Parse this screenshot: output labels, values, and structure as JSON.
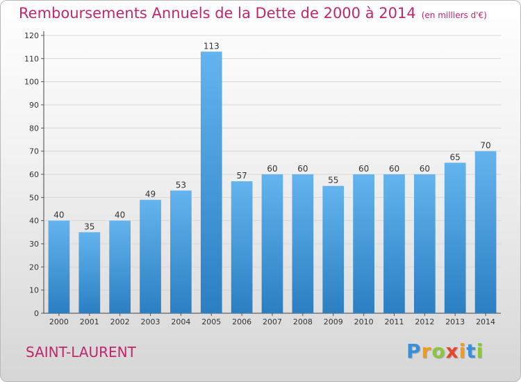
{
  "header": {
    "title": "Remboursements Annuels de la Dette de 2000 à 2014",
    "unit": "(en milliers d'€)"
  },
  "commune": "SAINT-LAURENT",
  "logo": {
    "text": "Proxiti",
    "letters": [
      {
        "ch": "P",
        "color": "#3b8fd9"
      },
      {
        "ch": "r",
        "color": "#f39c12"
      },
      {
        "ch": "o",
        "color": "#8cc63f"
      },
      {
        "ch": "x",
        "color": "#e8452c"
      },
      {
        "ch": "i",
        "color": "#f39c12"
      },
      {
        "ch": "t",
        "color": "#3b8fd9"
      },
      {
        "ch": "i",
        "color": "#8cc63f"
      }
    ]
  },
  "colors": {
    "title": "#c0266e",
    "bar_top": "#63b4ee",
    "bar_bottom": "#2b7fc2",
    "grid": "#d7d7d7"
  },
  "chart_data": {
    "type": "bar",
    "categories": [
      "2000",
      "2001",
      "2002",
      "2003",
      "2004",
      "2005",
      "2006",
      "2007",
      "2008",
      "2009",
      "2010",
      "2011",
      "2012",
      "2013",
      "2014"
    ],
    "values": [
      40,
      35,
      40,
      49,
      53,
      113,
      57,
      60,
      60,
      55,
      60,
      60,
      60,
      65,
      70
    ],
    "title": "Remboursements Annuels de la Dette de 2000 à 2014",
    "xlabel": "",
    "ylabel": "",
    "ylim": [
      0,
      120
    ],
    "yticks": [
      0,
      10,
      20,
      30,
      40,
      50,
      60,
      70,
      80,
      90,
      100,
      110,
      120
    ],
    "grid": true
  }
}
